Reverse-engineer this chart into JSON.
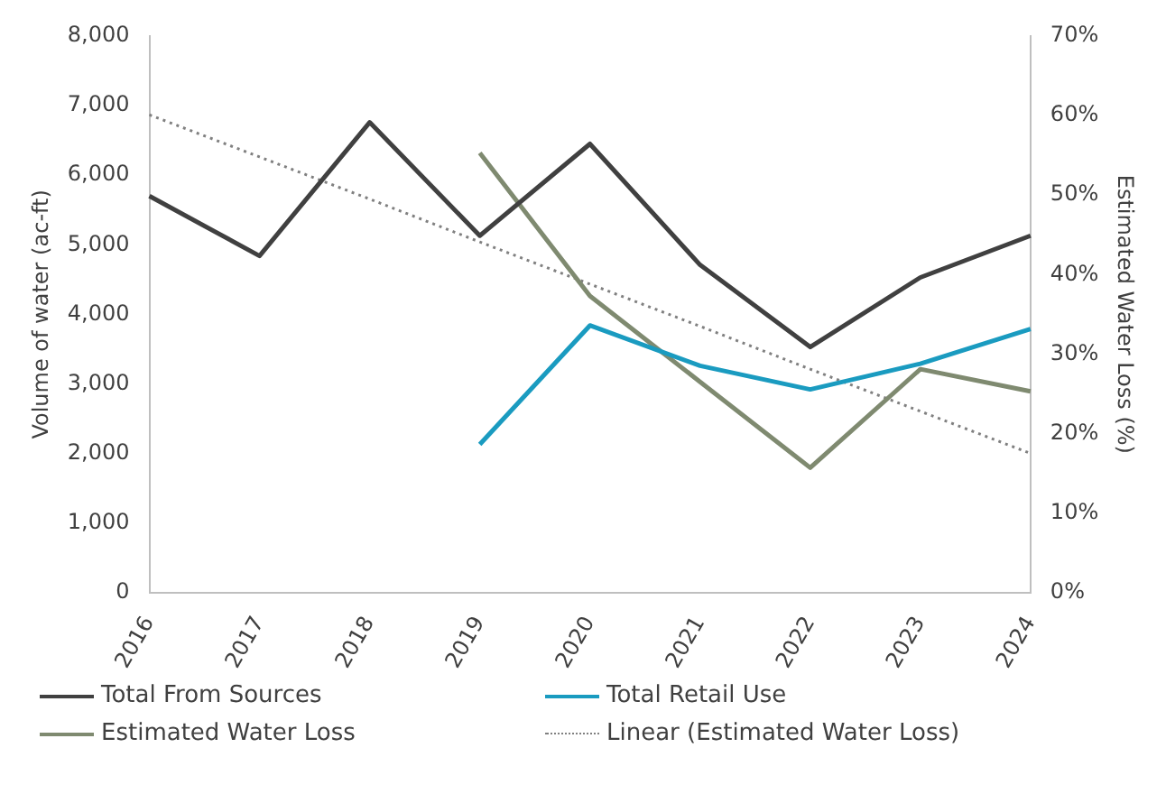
{
  "chart_data": {
    "type": "line",
    "ylabel": "Volume of water (ac-ft)",
    "y2label": "Estimated Water Loss (%)",
    "categories": [
      "2016",
      "2017",
      "2018",
      "2019",
      "2020",
      "2021",
      "2022",
      "2023",
      "2024"
    ],
    "series": [
      {
        "name": "Total From Sources",
        "color": "#404040",
        "values": [
          5700,
          4840,
          6760,
          5130,
          6450,
          4710,
          3530,
          4530,
          5130
        ]
      },
      {
        "name": "Total Retail Use",
        "color": "#1a9bc0",
        "values": [
          null,
          null,
          null,
          2130,
          3840,
          3260,
          2920,
          3290,
          3790
        ]
      },
      {
        "name": "Estimated Water Loss",
        "color": "#7f8a70",
        "axis": "y2",
        "values": [
          null,
          null,
          null,
          55.3,
          37.3,
          26.5,
          15.7,
          28.1,
          25.3
        ]
      },
      {
        "name": "Linear (Estimated Water Loss)",
        "color": "#808080",
        "axis": "y2",
        "line_style": "dotted",
        "values": [
          60.1,
          54.8,
          49.5,
          44.1,
          38.8,
          33.5,
          28.1,
          22.8,
          17.5
        ]
      }
    ],
    "ylim": [
      0,
      8000
    ],
    "yticks": [
      0,
      {
        "value": 1000,
        "label": "1,000"
      },
      {
        "value": 2000,
        "label": "2,000"
      },
      {
        "value": 3000,
        "label": "3,000"
      },
      {
        "value": 4000,
        "label": "4,000"
      },
      {
        "value": 5000,
        "label": "5,000"
      },
      {
        "value": 6000,
        "label": "6,000"
      },
      {
        "value": 7000,
        "label": "7,000"
      },
      {
        "value": 8000,
        "label": "8,000"
      }
    ],
    "y2lim": [
      0,
      70
    ],
    "y2ticks": [
      {
        "value": 0,
        "label": "0%"
      },
      {
        "value": 10,
        "label": "10%"
      },
      {
        "value": 20,
        "label": "20%"
      },
      {
        "value": 30,
        "label": "30%"
      },
      {
        "value": 40,
        "label": "40%"
      },
      {
        "value": 50,
        "label": "50%"
      },
      {
        "value": 60,
        "label": "60%"
      },
      {
        "value": 70,
        "label": "70%"
      }
    ],
    "grid": false,
    "legend": "bottom",
    "marker": "none",
    "line_style": "solid"
  }
}
